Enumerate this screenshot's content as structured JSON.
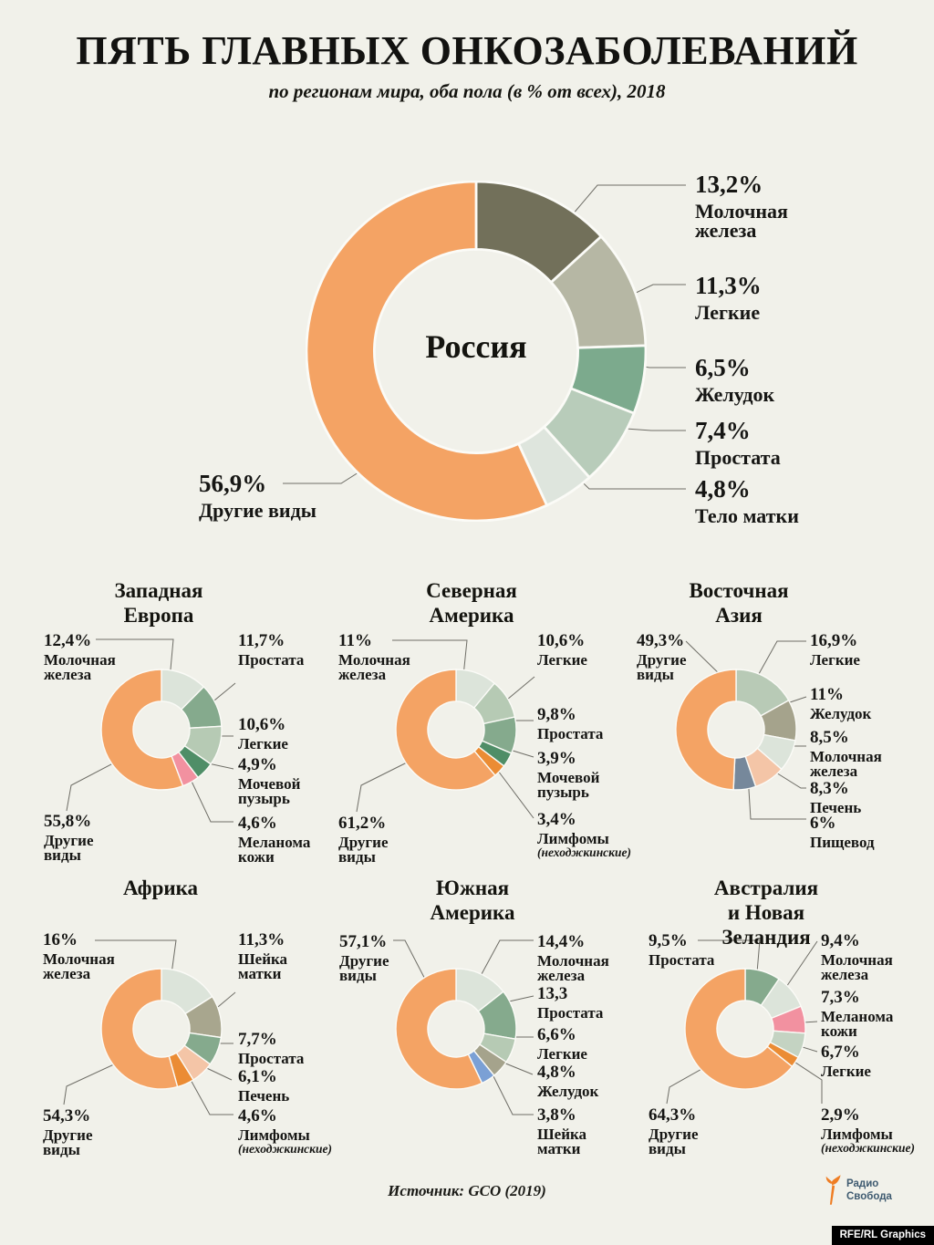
{
  "header": {
    "title": "ПЯТЬ ГЛАВНЫХ ОНКОЗАБОЛЕВАНИЙ",
    "subtitle": "по регионам мира, оба пола (в % от всех), 2018"
  },
  "footer": {
    "source": "Источник: GCO (2019)",
    "logo_line1": "Радио",
    "logo_line2": "Свобода",
    "credit": "RFE/RL Graphics"
  },
  "palette": {
    "background": "#f1f1ea",
    "others_orange": "#f4a364",
    "lymphoma_orange": "#eb8c34",
    "dark_olive": "#72705a",
    "gray_green": "#b6b7a4",
    "medium_green": "#85aa8d",
    "light_green": "#b6cab4",
    "pale_green": "#dce4da",
    "dark_green": "#4f8e67",
    "pink": "#f291a0",
    "peach": "#f4c5a7",
    "slate_blue": "#76889b",
    "cornflower": "#7ba0d5",
    "olive_gray": "#a5a38c"
  },
  "chart_data": [
    {
      "type": "pie",
      "region": "Россия",
      "segments": [
        {
          "label": "Молочная\nжелеза",
          "value": 13.2,
          "display": "13,2%",
          "color": "#72705a"
        },
        {
          "label": "Легкие",
          "value": 11.3,
          "display": "11,3%",
          "color": "#b6b7a4"
        },
        {
          "label": "Желудок",
          "value": 6.5,
          "display": "6,5%",
          "color": "#7caa8d"
        },
        {
          "label": "Простата",
          "value": 7.4,
          "display": "7,4%",
          "color": "#b8ccba"
        },
        {
          "label": "Тело матки",
          "value": 4.8,
          "display": "4,8%",
          "color": "#dee5dd"
        },
        {
          "label": "Другие виды",
          "value": 56.9,
          "display": "56,9%",
          "color": "#f4a364"
        }
      ]
    },
    {
      "type": "pie",
      "region": "Западная\nЕвропа",
      "segments": [
        {
          "label": "Молочная\nжелеза",
          "value": 12.4,
          "display": "12,4%",
          "color": "#dce4da"
        },
        {
          "label": "Простата",
          "value": 11.7,
          "display": "11,7%",
          "color": "#85aa8d"
        },
        {
          "label": "Легкие",
          "value": 10.6,
          "display": "10,6%",
          "color": "#b6cab4"
        },
        {
          "label": "Мочевой\nпузырь",
          "value": 4.9,
          "display": "4,9%",
          "color": "#4f8e67"
        },
        {
          "label": "Меланома\nкожи",
          "value": 4.6,
          "display": "4,6%",
          "color": "#f291a0"
        },
        {
          "label": "Другие\nвиды",
          "value": 55.8,
          "display": "55,8%",
          "color": "#f4a364"
        }
      ]
    },
    {
      "type": "pie",
      "region": "Северная\nАмерика",
      "segments": [
        {
          "label": "Молочная\nжелеза",
          "value": 11.0,
          "display": "11%",
          "color": "#dce4da"
        },
        {
          "label": "Легкие",
          "value": 10.6,
          "display": "10,6%",
          "color": "#b6cab4"
        },
        {
          "label": "Простата",
          "value": 9.8,
          "display": "9,8%",
          "color": "#85aa8d"
        },
        {
          "label": "Мочевой\nпузырь",
          "value": 3.9,
          "display": "3,9%",
          "color": "#4f8e67"
        },
        {
          "label": "Лимфомы",
          "sublabel": "(неходжкинские)",
          "value": 3.4,
          "display": "3,4%",
          "color": "#eb8c34"
        },
        {
          "label": "Другие\nвиды",
          "value": 61.2,
          "display": "61,2%",
          "color": "#f4a364"
        }
      ]
    },
    {
      "type": "pie",
      "region": "Восточная\nАзия",
      "segments": [
        {
          "label": "Легкие",
          "value": 16.9,
          "display": "16,9%",
          "color": "#b8cab6"
        },
        {
          "label": "Желудок",
          "value": 11.0,
          "display": "11%",
          "color": "#a5a38c"
        },
        {
          "label": "Молочная\nжелеза",
          "value": 8.5,
          "display": "8,5%",
          "color": "#dce4da"
        },
        {
          "label": "Печень",
          "value": 8.3,
          "display": "8,3%",
          "color": "#f4c5a7"
        },
        {
          "label": "Пищевод",
          "value": 6.0,
          "display": "6%",
          "color": "#76889b"
        },
        {
          "label": "Другие\nвиды",
          "value": 49.3,
          "display": "49,3%",
          "color": "#f4a364"
        }
      ]
    },
    {
      "type": "pie",
      "region": "Африка",
      "segments": [
        {
          "label": "Молочная\nжелеза",
          "value": 16.0,
          "display": "16%",
          "color": "#dce4da"
        },
        {
          "label": "Шейка\nматки",
          "value": 11.3,
          "display": "11,3%",
          "color": "#a8a68e"
        },
        {
          "label": "Простата",
          "value": 7.7,
          "display": "7,7%",
          "color": "#85aa8d"
        },
        {
          "label": "Печень",
          "value": 6.1,
          "display": "6,1%",
          "color": "#f4c5a7"
        },
        {
          "label": "Лимфомы",
          "sublabel": "(неходжкинские)",
          "value": 4.6,
          "display": "4,6%",
          "color": "#eb8c34"
        },
        {
          "label": "Другие\nвиды",
          "value": 54.3,
          "display": "54,3%",
          "color": "#f4a364"
        }
      ]
    },
    {
      "type": "pie",
      "region": "Южная\nАмерика",
      "segments": [
        {
          "label": "Молочная\nжелеза",
          "value": 14.4,
          "display": "14,4%",
          "color": "#dce4da"
        },
        {
          "label": "Простата",
          "value": 13.3,
          "display": "13,3",
          "color": "#85aa8d"
        },
        {
          "label": "Легкие",
          "value": 6.6,
          "display": "6,6%",
          "color": "#b6cab4"
        },
        {
          "label": "Желудок",
          "value": 4.8,
          "display": "4,8%",
          "color": "#a5a38c"
        },
        {
          "label": "Шейка\nматки",
          "value": 3.8,
          "display": "3,8%",
          "color": "#7ba0d5"
        },
        {
          "label": "Другие\nвиды",
          "value": 57.1,
          "display": "57,1%",
          "color": "#f4a364"
        }
      ]
    },
    {
      "type": "pie",
      "region": "Австралия\nи Новая Зеландия",
      "segments": [
        {
          "label": "Простата",
          "value": 9.5,
          "display": "9,5%",
          "color": "#85aa8d"
        },
        {
          "label": "Молочная\nжелеза",
          "value": 9.4,
          "display": "9,4%",
          "color": "#dce4da"
        },
        {
          "label": "Меланома\nкожи",
          "value": 7.3,
          "display": "7,3%",
          "color": "#f291a0"
        },
        {
          "label": "Легкие",
          "value": 6.7,
          "display": "6,7%",
          "color": "#c4d3c2"
        },
        {
          "label": "Лимфомы",
          "sublabel": "(неходжкинские)",
          "value": 2.9,
          "display": "2,9%",
          "color": "#eb8c34"
        },
        {
          "label": "Другие\nвиды",
          "value": 64.3,
          "display": "64,3%",
          "color": "#f4a364"
        }
      ]
    }
  ]
}
